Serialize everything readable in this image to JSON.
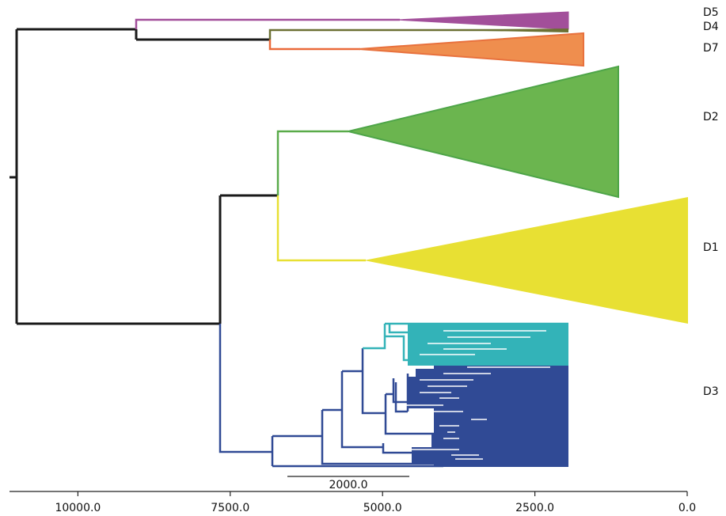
{
  "clades": [
    {
      "id": "D5",
      "label": "D5",
      "color": "#a24f9a"
    },
    {
      "id": "D4",
      "label": "D4",
      "color": "#6b7033"
    },
    {
      "id": "D7",
      "label": "D7",
      "color": "#ea8347"
    },
    {
      "id": "D2",
      "label": "D2",
      "color": "#69b650"
    },
    {
      "id": "D1",
      "label": "D1",
      "color": "#e8e033"
    },
    {
      "id": "D3",
      "label": "D3",
      "color": "#304a95"
    }
  ],
  "d3_subclade_color": "#33b3b8",
  "backbone_color": "#1a1a1a",
  "scale_bar": {
    "label": "2000.0",
    "length": 2000
  },
  "axis": {
    "ticks": [
      {
        "value": 10000,
        "label": "10000.0"
      },
      {
        "value": 7500,
        "label": "7500.0"
      },
      {
        "value": 5000,
        "label": "5000.0"
      },
      {
        "value": 2500,
        "label": "2500.0"
      },
      {
        "value": 0,
        "label": "0.0"
      }
    ]
  }
}
